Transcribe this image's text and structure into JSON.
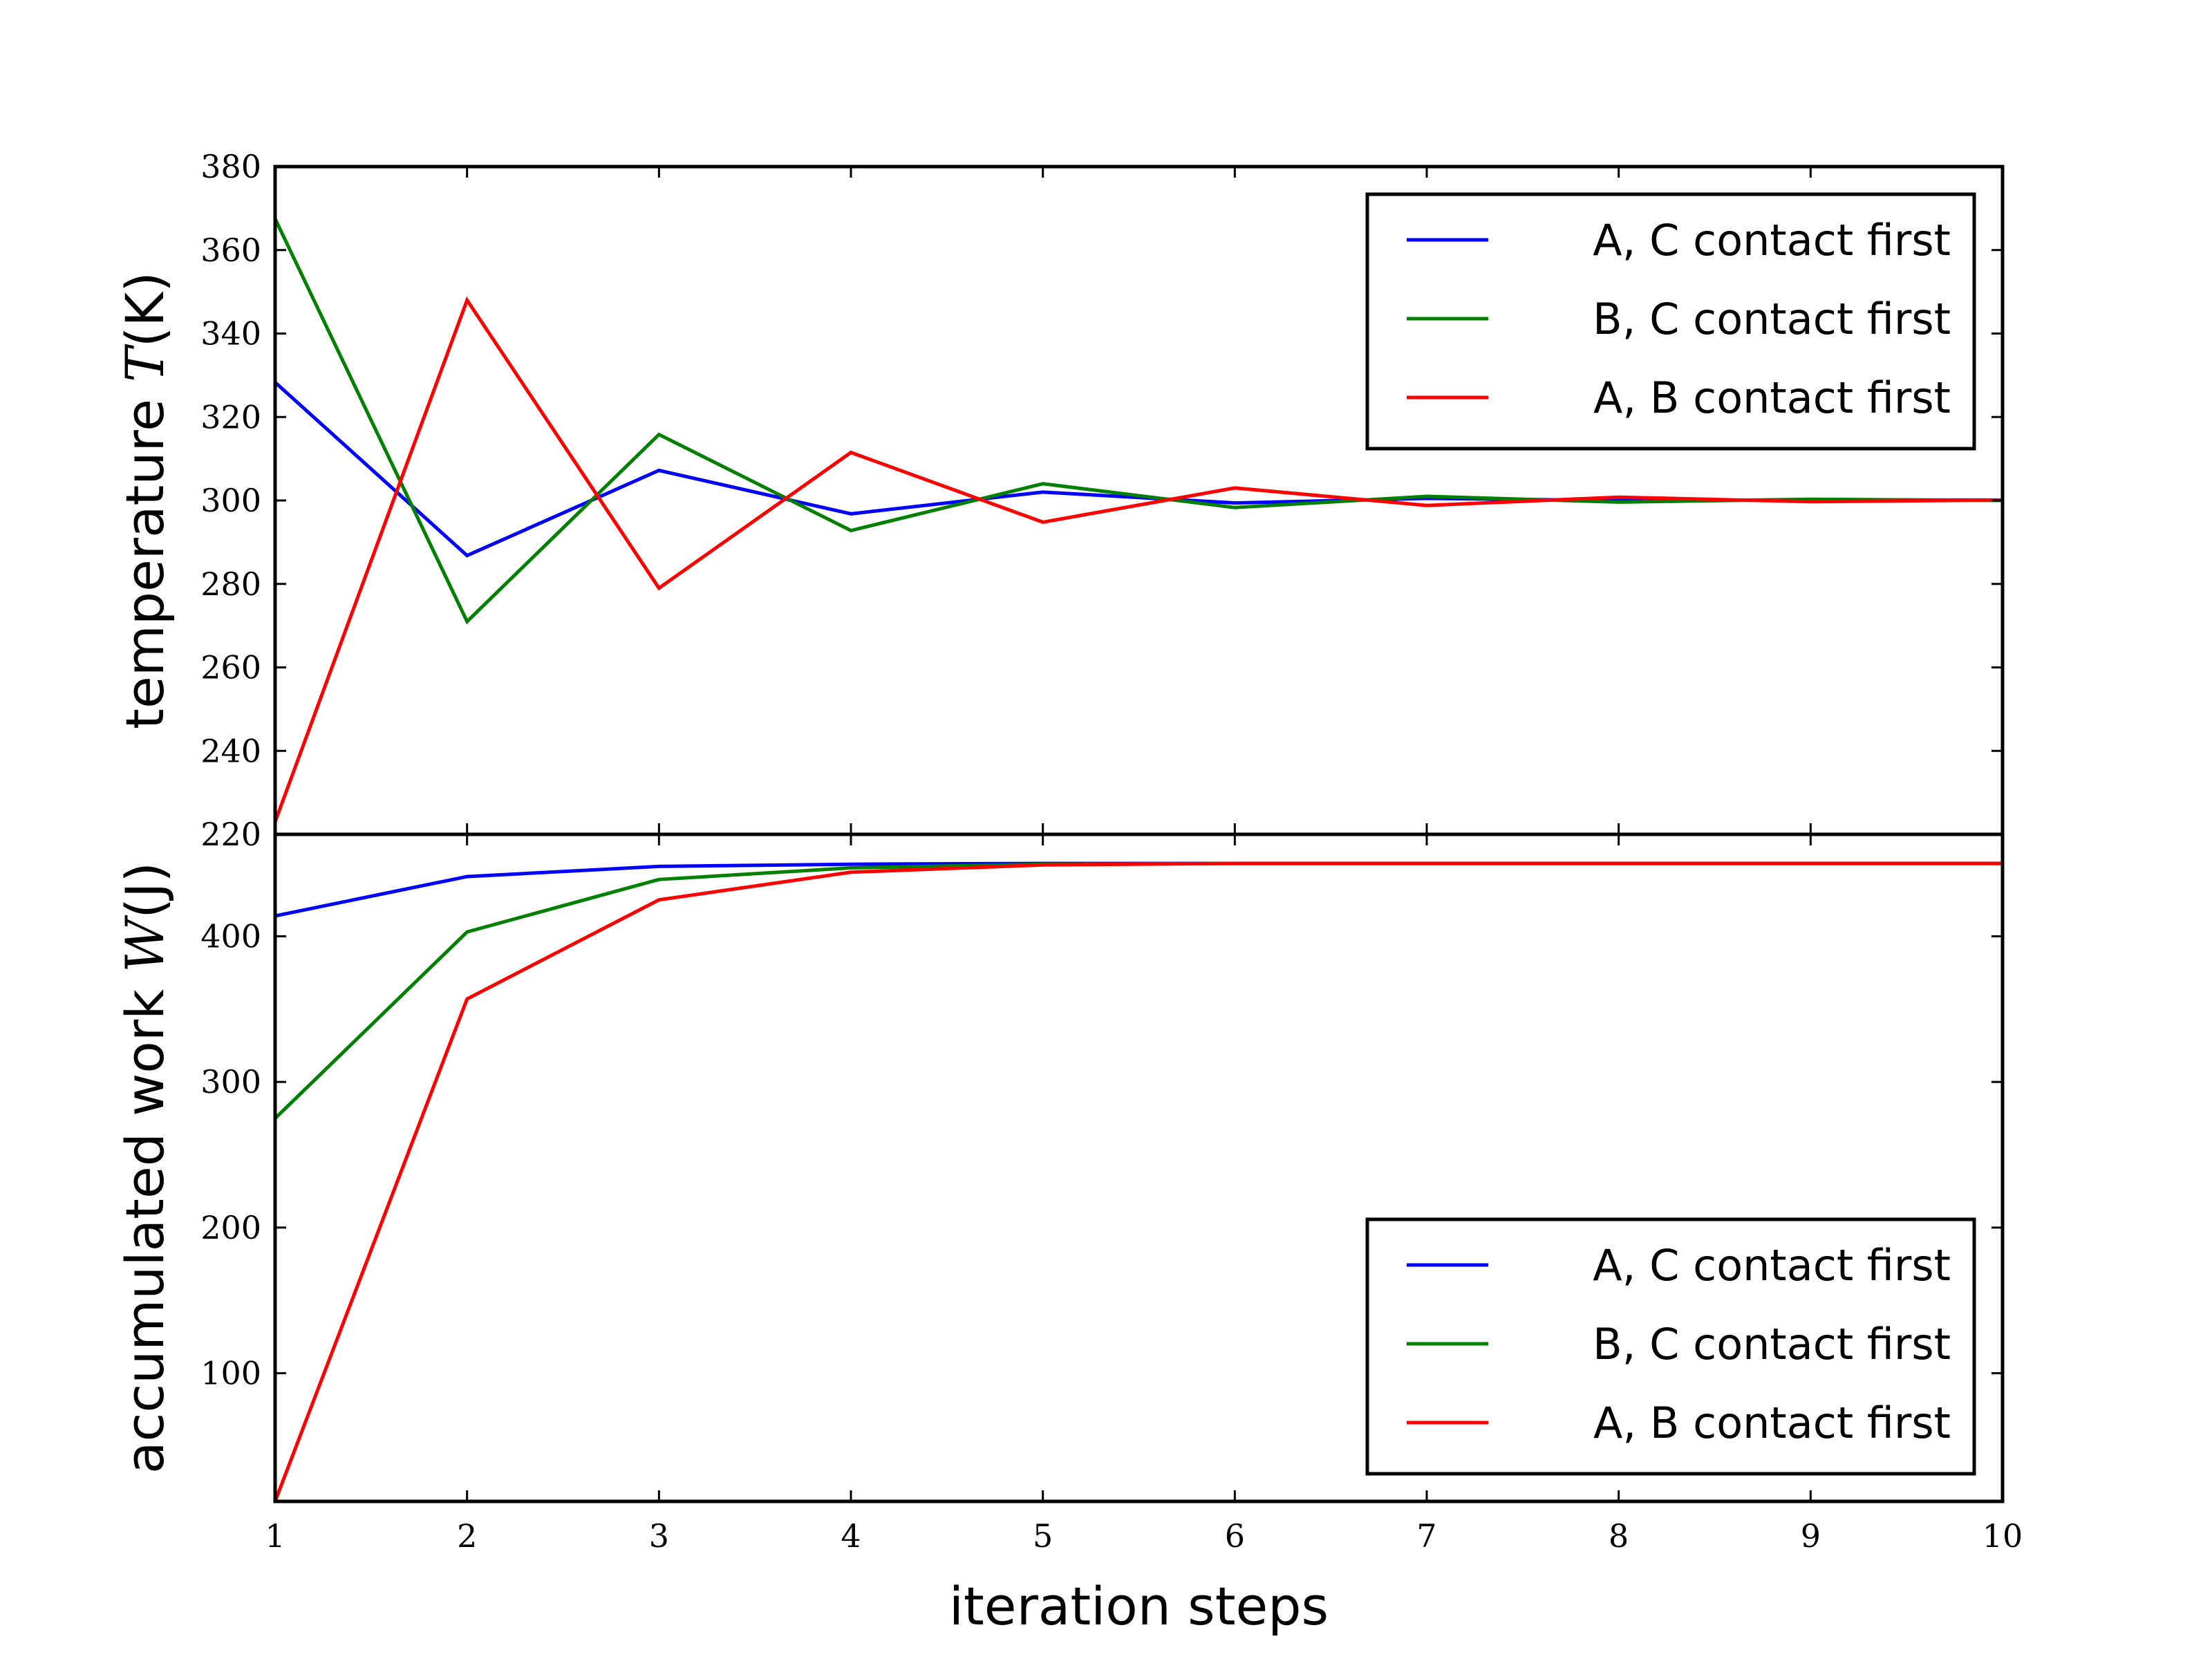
{
  "chart_data": [
    {
      "type": "line",
      "panel": "top",
      "xlabel": "",
      "ylabel": "temperature T(K)",
      "ylabel_parts": {
        "prefix": "temperature ",
        "symbol": "T",
        "suffix": "(K)"
      },
      "xlim": [
        1,
        10
      ],
      "ylim": [
        220,
        380
      ],
      "yticks": [
        220,
        240,
        260,
        280,
        300,
        320,
        340,
        360,
        380
      ],
      "xticks": [
        1,
        2,
        3,
        4,
        5,
        6,
        7,
        8,
        9,
        10
      ],
      "grid": false,
      "legend_position": "top-right",
      "x": [
        1,
        2,
        3,
        4,
        5,
        6,
        7,
        8,
        9,
        10
      ],
      "series": [
        {
          "name": "A, C contact first",
          "color": "#0000ff",
          "values": [
            328.3,
            286.8,
            307.2,
            296.8,
            302.0,
            299.4,
            300.5,
            300.0,
            300.1,
            300.1
          ]
        },
        {
          "name": "B, C contact first",
          "color": "#008000",
          "values": [
            367.5,
            271.0,
            315.8,
            292.8,
            304.0,
            298.3,
            301.0,
            299.6,
            300.3,
            300.0
          ]
        },
        {
          "name": "A, B contact first",
          "color": "#ff0000",
          "values": [
            223.0,
            348.0,
            279.0,
            311.5,
            294.8,
            303.0,
            298.8,
            300.8,
            299.7,
            300.1
          ]
        }
      ]
    },
    {
      "type": "line",
      "panel": "bottom",
      "xlabel": "iteration steps",
      "ylabel": "accumulated work W(J)",
      "ylabel_parts": {
        "prefix": "accumulated work ",
        "symbol": "W",
        "suffix": "(J)"
      },
      "xlim": [
        1,
        10
      ],
      "ylim": [
        12,
        470
      ],
      "yticks": [
        100,
        200,
        300,
        400
      ],
      "xticks": [
        1,
        2,
        3,
        4,
        5,
        6,
        7,
        8,
        9,
        10
      ],
      "grid": false,
      "legend_position": "bottom-right",
      "x": [
        1,
        2,
        3,
        4,
        5,
        6,
        7,
        8,
        9,
        10
      ],
      "series": [
        {
          "name": "A, C contact first",
          "color": "#0000ff",
          "values": [
            414,
            441,
            448,
            449.5,
            450,
            450,
            450,
            450,
            450,
            450
          ]
        },
        {
          "name": "B, C contact first",
          "color": "#008000",
          "values": [
            275,
            403,
            439,
            447,
            449.5,
            450,
            450,
            450,
            450,
            450
          ]
        },
        {
          "name": "A, B contact first",
          "color": "#ff0000",
          "values": [
            12,
            357,
            425,
            444,
            449,
            450,
            450,
            450,
            450,
            450
          ]
        }
      ]
    }
  ]
}
